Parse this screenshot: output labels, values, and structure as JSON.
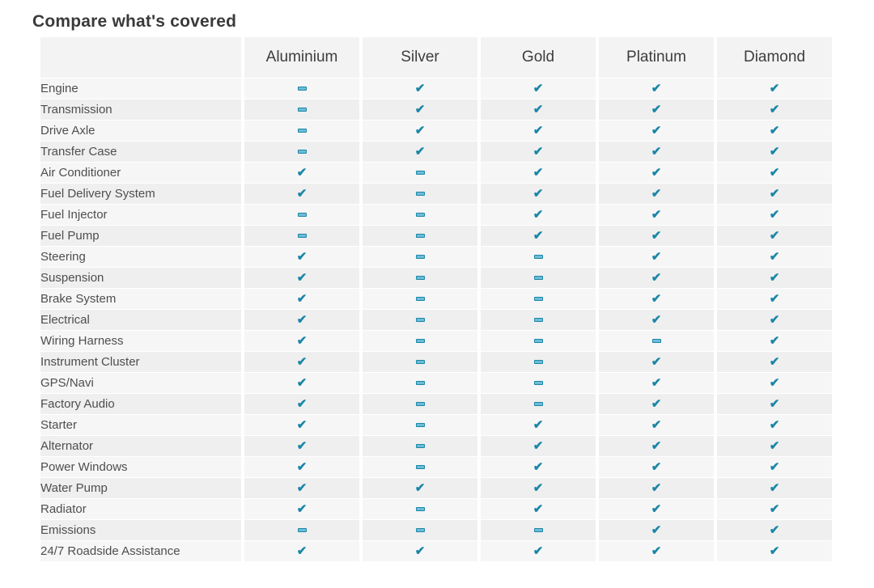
{
  "page": {
    "title": "Compare what's covered"
  },
  "colors": {
    "accent_teal": "#1a86a8",
    "row_light": "#f6f6f6",
    "row_dark": "#efefef",
    "header_bg": "#f3f3f3",
    "title_text": "#3a3a3a",
    "label_text": "#4e4e4e"
  },
  "icons": {
    "covered_glyph": "✔",
    "covered_name": "check-icon",
    "not_covered_name": "dash-icon"
  },
  "table": {
    "plans": [
      "Aluminium",
      "Silver",
      "Gold",
      "Platinum",
      "Diamond"
    ],
    "rows": [
      {
        "label": "Engine",
        "coverage": [
          false,
          true,
          true,
          true,
          true
        ]
      },
      {
        "label": "Transmission",
        "coverage": [
          false,
          true,
          true,
          true,
          true
        ]
      },
      {
        "label": "Drive Axle",
        "coverage": [
          false,
          true,
          true,
          true,
          true
        ]
      },
      {
        "label": "Transfer Case",
        "coverage": [
          false,
          true,
          true,
          true,
          true
        ]
      },
      {
        "label": "Air Conditioner",
        "coverage": [
          true,
          false,
          true,
          true,
          true
        ]
      },
      {
        "label": "Fuel Delivery System",
        "coverage": [
          true,
          false,
          true,
          true,
          true
        ]
      },
      {
        "label": "Fuel Injector",
        "coverage": [
          false,
          false,
          true,
          true,
          true
        ]
      },
      {
        "label": "Fuel Pump",
        "coverage": [
          false,
          false,
          true,
          true,
          true
        ]
      },
      {
        "label": "Steering",
        "coverage": [
          true,
          false,
          false,
          true,
          true
        ]
      },
      {
        "label": "Suspension",
        "coverage": [
          true,
          false,
          false,
          true,
          true
        ]
      },
      {
        "label": "Brake System",
        "coverage": [
          true,
          false,
          false,
          true,
          true
        ]
      },
      {
        "label": "Electrical",
        "coverage": [
          true,
          false,
          false,
          true,
          true
        ]
      },
      {
        "label": "Wiring Harness",
        "coverage": [
          true,
          false,
          false,
          false,
          true
        ]
      },
      {
        "label": "Instrument Cluster",
        "coverage": [
          true,
          false,
          false,
          true,
          true
        ]
      },
      {
        "label": "GPS/Navi",
        "coverage": [
          true,
          false,
          false,
          true,
          true
        ]
      },
      {
        "label": "Factory Audio",
        "coverage": [
          true,
          false,
          false,
          true,
          true
        ]
      },
      {
        "label": "Starter",
        "coverage": [
          true,
          false,
          true,
          true,
          true
        ]
      },
      {
        "label": "Alternator",
        "coverage": [
          true,
          false,
          true,
          true,
          true
        ]
      },
      {
        "label": "Power Windows",
        "coverage": [
          true,
          false,
          true,
          true,
          true
        ]
      },
      {
        "label": "Water Pump",
        "coverage": [
          true,
          true,
          true,
          true,
          true
        ]
      },
      {
        "label": "Radiator",
        "coverage": [
          true,
          false,
          true,
          true,
          true
        ]
      },
      {
        "label": "Emissions",
        "coverage": [
          false,
          false,
          false,
          true,
          true
        ]
      },
      {
        "label": "24/7 Roadside Assistance",
        "coverage": [
          true,
          true,
          true,
          true,
          true
        ]
      }
    ]
  }
}
